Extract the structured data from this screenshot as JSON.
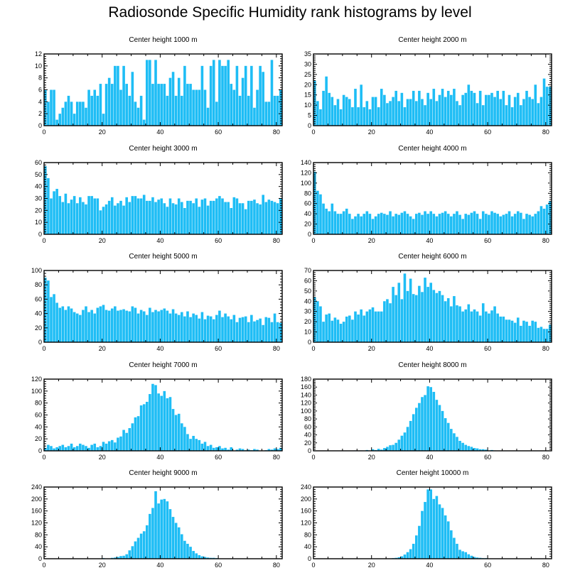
{
  "title": "Radiosonde Specific Humidity rank histograms by level",
  "bar_color": "#1ebdf5",
  "chart_data": [
    {
      "type": "bar",
      "title": "Center height 1000 m",
      "ylim": [
        0,
        12
      ],
      "yticks": [
        0,
        2,
        4,
        6,
        8,
        10,
        12
      ],
      "xticks": [
        0,
        20,
        40,
        60,
        80
      ],
      "xlim": [
        0,
        82
      ],
      "values": [
        6,
        4,
        6,
        6,
        1,
        2,
        3,
        4,
        5,
        4,
        2,
        4,
        4,
        4,
        3,
        6,
        5,
        6,
        5,
        7,
        2,
        7,
        8,
        7,
        10,
        10,
        6,
        10,
        7,
        5,
        9,
        4,
        3,
        5,
        1,
        11,
        11,
        7,
        11,
        7,
        7,
        7,
        5,
        8,
        9,
        5,
        8,
        5,
        10,
        7,
        7,
        6,
        6,
        6,
        10,
        6,
        3,
        10,
        11,
        4,
        11,
        10,
        10,
        11,
        7,
        6,
        10,
        5,
        8,
        10,
        5,
        10,
        3,
        6,
        10,
        9,
        4,
        4,
        11,
        5,
        5,
        6
      ]
    },
    {
      "type": "bar",
      "title": "Center height 2000 m",
      "ylim": [
        0,
        35
      ],
      "yticks": [
        0,
        5,
        10,
        15,
        20,
        25,
        30,
        35
      ],
      "xticks": [
        0,
        20,
        40,
        60,
        80
      ],
      "xlim": [
        0,
        82
      ],
      "values": [
        22,
        12,
        8,
        17,
        24,
        16,
        14,
        10,
        13,
        8,
        15,
        14,
        13,
        9,
        18,
        9,
        20,
        9,
        12,
        8,
        14,
        14,
        9,
        18,
        15,
        11,
        12,
        14,
        17,
        12,
        16,
        9,
        13,
        13,
        17,
        12,
        17,
        13,
        10,
        16,
        13,
        18,
        12,
        15,
        18,
        14,
        17,
        15,
        18,
        12,
        10,
        15,
        16,
        20,
        17,
        16,
        11,
        17,
        10,
        15,
        15,
        16,
        14,
        17,
        13,
        17,
        10,
        15,
        9,
        14,
        16,
        10,
        13,
        17,
        14,
        13,
        20,
        11,
        14,
        23,
        19,
        19
      ]
    },
    {
      "type": "bar",
      "title": "Center height 3000 m",
      "ylim": [
        0,
        60
      ],
      "yticks": [
        0,
        10,
        20,
        30,
        40,
        50,
        60
      ],
      "xticks": [
        0,
        20,
        40,
        60,
        80
      ],
      "xlim": [
        0,
        82
      ],
      "values": [
        57,
        47,
        30,
        36,
        38,
        32,
        27,
        34,
        26,
        29,
        32,
        26,
        31,
        27,
        25,
        32,
        32,
        30,
        30,
        20,
        23,
        25,
        28,
        31,
        24,
        26,
        28,
        24,
        31,
        27,
        32,
        32,
        30,
        30,
        33,
        28,
        28,
        31,
        27,
        29,
        30,
        26,
        23,
        30,
        26,
        25,
        30,
        27,
        22,
        28,
        28,
        26,
        30,
        23,
        29,
        30,
        24,
        28,
        28,
        30,
        32,
        30,
        27,
        27,
        22,
        31,
        30,
        26,
        26,
        21,
        28,
        28,
        29,
        26,
        25,
        33,
        27,
        29,
        28,
        27,
        26,
        30
      ]
    },
    {
      "type": "bar",
      "title": "Center height 4000 m",
      "ylim": [
        0,
        140
      ],
      "yticks": [
        0,
        20,
        40,
        60,
        80,
        100,
        120,
        140
      ],
      "xticks": [
        0,
        20,
        40,
        60,
        80
      ],
      "xlim": [
        0,
        82
      ],
      "values": [
        122,
        85,
        78,
        60,
        50,
        45,
        60,
        45,
        40,
        40,
        45,
        50,
        40,
        30,
        35,
        40,
        35,
        40,
        45,
        40,
        30,
        35,
        40,
        42,
        40,
        38,
        45,
        35,
        40,
        38,
        42,
        45,
        40,
        35,
        30,
        40,
        42,
        38,
        45,
        40,
        45,
        40,
        35,
        40,
        42,
        45,
        40,
        35,
        40,
        45,
        38,
        30,
        40,
        38,
        42,
        45,
        40,
        30,
        45,
        40,
        38,
        45,
        42,
        40,
        35,
        38,
        40,
        45,
        35,
        40,
        45,
        42,
        30,
        40,
        38,
        35,
        40,
        45,
        55,
        50,
        58,
        65
      ]
    },
    {
      "type": "bar",
      "title": "Center height 5000 m",
      "ylim": [
        0,
        100
      ],
      "yticks": [
        0,
        20,
        40,
        60,
        80,
        100
      ],
      "xticks": [
        0,
        20,
        40,
        60,
        80
      ],
      "xlim": [
        0,
        82
      ],
      "values": [
        90,
        86,
        63,
        67,
        55,
        48,
        50,
        45,
        50,
        47,
        42,
        40,
        38,
        45,
        50,
        42,
        45,
        40,
        48,
        50,
        52,
        45,
        44,
        47,
        50,
        44,
        45,
        46,
        44,
        43,
        50,
        48,
        40,
        45,
        43,
        38,
        48,
        42,
        45,
        43,
        45,
        47,
        44,
        40,
        46,
        40,
        38,
        42,
        36,
        43,
        35,
        40,
        38,
        33,
        42,
        32,
        37,
        36,
        32,
        38,
        44,
        35,
        40,
        36,
        32,
        38,
        28,
        34,
        35,
        36,
        28,
        38,
        29,
        31,
        33,
        24,
        35,
        34,
        28,
        40,
        28,
        27
      ]
    },
    {
      "type": "bar",
      "title": "Center height 6000 m",
      "ylim": [
        0,
        70
      ],
      "yticks": [
        0,
        10,
        20,
        30,
        40,
        50,
        60,
        70
      ],
      "xticks": [
        0,
        20,
        40,
        60,
        80
      ],
      "xlim": [
        0,
        82
      ],
      "values": [
        44,
        40,
        35,
        20,
        27,
        28,
        21,
        24,
        22,
        18,
        20,
        25,
        26,
        22,
        30,
        27,
        32,
        26,
        30,
        32,
        34,
        30,
        30,
        30,
        40,
        42,
        38,
        54,
        46,
        58,
        42,
        67,
        50,
        62,
        47,
        46,
        55,
        49,
        63,
        54,
        58,
        51,
        48,
        50,
        46,
        40,
        43,
        35,
        45,
        36,
        35,
        30,
        32,
        37,
        30,
        32,
        30,
        26,
        38,
        30,
        28,
        31,
        35,
        28,
        25,
        25,
        22,
        22,
        21,
        19,
        24,
        16,
        21,
        20,
        16,
        21,
        20,
        14,
        15,
        13,
        13,
        17
      ]
    },
    {
      "type": "bar",
      "title": "Center height 7000 m",
      "ylim": [
        0,
        120
      ],
      "yticks": [
        0,
        20,
        40,
        60,
        80,
        100,
        120
      ],
      "xticks": [
        0,
        20,
        40,
        60,
        80
      ],
      "xlim": [
        0,
        82
      ],
      "values": [
        5,
        10,
        8,
        4,
        6,
        8,
        10,
        6,
        8,
        12,
        6,
        8,
        12,
        10,
        8,
        5,
        10,
        12,
        6,
        8,
        15,
        12,
        16,
        18,
        14,
        22,
        24,
        35,
        30,
        38,
        46,
        56,
        58,
        76,
        78,
        82,
        95,
        112,
        110,
        96,
        92,
        100,
        88,
        90,
        70,
        60,
        62,
        46,
        40,
        28,
        20,
        25,
        20,
        18,
        12,
        15,
        8,
        10,
        5,
        6,
        8,
        4,
        5,
        2,
        6,
        0,
        2,
        4,
        3,
        1,
        2,
        1,
        3,
        2,
        0,
        0,
        1,
        3,
        2,
        4,
        3,
        5
      ]
    },
    {
      "type": "bar",
      "title": "Center height 8000 m",
      "ylim": [
        0,
        180
      ],
      "yticks": [
        0,
        20,
        40,
        60,
        80,
        100,
        120,
        140,
        160,
        180
      ],
      "xticks": [
        0,
        20,
        40,
        60,
        80
      ],
      "xlim": [
        0,
        82
      ],
      "values": [
        1,
        0,
        0,
        0,
        0,
        0,
        0,
        0,
        0,
        0,
        0,
        0,
        0,
        0,
        1,
        0,
        1,
        0,
        2,
        1,
        4,
        2,
        5,
        3,
        7,
        10,
        14,
        15,
        20,
        28,
        38,
        46,
        60,
        75,
        92,
        108,
        120,
        135,
        140,
        162,
        160,
        148,
        128,
        115,
        100,
        82,
        70,
        55,
        44,
        35,
        25,
        20,
        15,
        12,
        10,
        7,
        6,
        4,
        4,
        3,
        1,
        2,
        1,
        0,
        0,
        0,
        0,
        0,
        0,
        0,
        0,
        0,
        0,
        0,
        0,
        0,
        0,
        0,
        0,
        0,
        0,
        0
      ]
    },
    {
      "type": "bar",
      "title": "Center height 9000 m",
      "ylim": [
        0,
        240
      ],
      "yticks": [
        0,
        40,
        80,
        120,
        160,
        200,
        240
      ],
      "xticks": [
        0,
        20,
        40,
        60,
        80
      ],
      "xlim": [
        0,
        82
      ],
      "values": [
        0,
        0,
        0,
        0,
        0,
        0,
        0,
        0,
        0,
        0,
        0,
        0,
        0,
        0,
        0,
        0,
        0,
        0,
        1,
        0,
        2,
        0,
        1,
        3,
        4,
        6,
        9,
        10,
        15,
        28,
        42,
        58,
        70,
        84,
        92,
        112,
        150,
        170,
        226,
        185,
        198,
        200,
        192,
        166,
        140,
        120,
        105,
        82,
        60,
        50,
        40,
        26,
        18,
        12,
        8,
        6,
        4,
        3,
        3,
        2,
        1,
        1,
        0,
        0,
        0,
        0,
        0,
        0,
        0,
        0,
        0,
        0,
        0,
        0,
        0,
        0,
        0,
        0,
        0,
        0,
        0,
        0
      ]
    },
    {
      "type": "bar",
      "title": "Center height 10000 m",
      "ylim": [
        0,
        240
      ],
      "yticks": [
        0,
        40,
        80,
        120,
        160,
        200,
        240
      ],
      "xticks": [
        0,
        20,
        40,
        60,
        80
      ],
      "xlim": [
        0,
        82
      ],
      "values": [
        0,
        0,
        0,
        0,
        0,
        0,
        0,
        0,
        0,
        0,
        0,
        0,
        0,
        0,
        0,
        0,
        0,
        0,
        0,
        0,
        0,
        0,
        0,
        0,
        0,
        0,
        1,
        2,
        3,
        5,
        8,
        14,
        22,
        32,
        50,
        78,
        110,
        160,
        190,
        232,
        232,
        200,
        210,
        182,
        170,
        145,
        125,
        95,
        70,
        50,
        30,
        25,
        22,
        15,
        10,
        6,
        4,
        3,
        2,
        2,
        1,
        0,
        0,
        0,
        0,
        0,
        0,
        0,
        0,
        0,
        0,
        0,
        0,
        0,
        0,
        0,
        0,
        0,
        0,
        0,
        0,
        0
      ]
    }
  ]
}
